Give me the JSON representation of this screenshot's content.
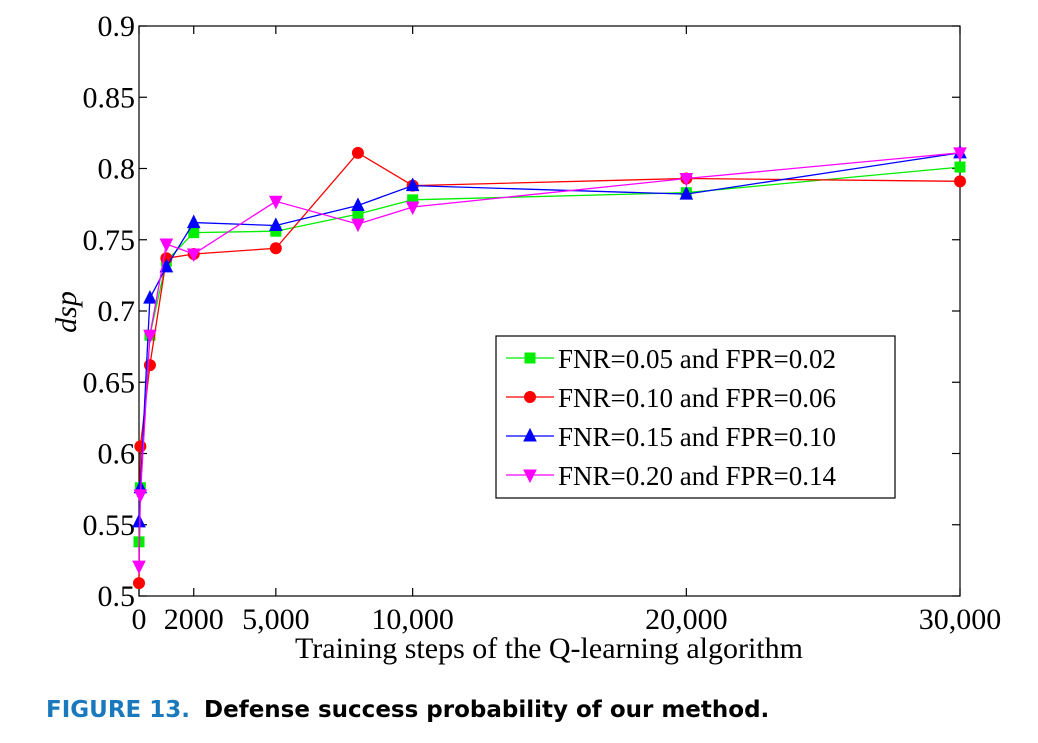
{
  "chart_data": {
    "type": "line",
    "xlabel": "Training steps of the Q-learning algorithm",
    "ylabel": "dsp",
    "xlim": [
      0,
      30000
    ],
    "ylim": [
      0.5,
      0.9
    ],
    "xticks": [
      {
        "value": 0,
        "label": "0"
      },
      {
        "value": 2000,
        "label": "2000"
      },
      {
        "value": 5000,
        "label": "5,000"
      },
      {
        "value": 10000,
        "label": "10,000"
      },
      {
        "value": 20000,
        "label": "20,000"
      },
      {
        "value": 30000,
        "label": "30,000"
      }
    ],
    "yticks": [
      {
        "value": 0.5,
        "label": "0.5"
      },
      {
        "value": 0.55,
        "label": "0.55"
      },
      {
        "value": 0.6,
        "label": "0.6"
      },
      {
        "value": 0.65,
        "label": "0.65"
      },
      {
        "value": 0.7,
        "label": "0.7"
      },
      {
        "value": 0.75,
        "label": "0.75"
      },
      {
        "value": 0.8,
        "label": "0.8"
      },
      {
        "value": 0.85,
        "label": "0.85"
      },
      {
        "value": 0.9,
        "label": "0.9"
      }
    ],
    "grid": false,
    "legend_position": "center-right",
    "series": [
      {
        "name": "FNR=0.05 and FPR=0.02",
        "color": "#00ee00",
        "marker": "square",
        "x": [
          0,
          50,
          400,
          1000,
          2000,
          5000,
          8000,
          10000,
          20000,
          30000
        ],
        "y": [
          0.538,
          0.576,
          0.683,
          0.735,
          0.755,
          0.756,
          0.768,
          0.778,
          0.783,
          0.801
        ]
      },
      {
        "name": "FNR=0.10 and FPR=0.06",
        "color": "#ff0000",
        "marker": "circle",
        "x": [
          0,
          50,
          400,
          1000,
          2000,
          5000,
          8000,
          10000,
          20000,
          30000
        ],
        "y": [
          0.509,
          0.605,
          0.662,
          0.737,
          0.74,
          0.744,
          0.811,
          0.788,
          0.793,
          0.791
        ]
      },
      {
        "name": "FNR=0.15 and FPR=0.10",
        "color": "#0000ff",
        "marker": "triangle-up",
        "x": [
          0,
          50,
          400,
          1000,
          2000,
          5000,
          8000,
          10000,
          20000,
          30000
        ],
        "y": [
          0.552,
          0.576,
          0.709,
          0.731,
          0.762,
          0.76,
          0.774,
          0.788,
          0.782,
          0.811
        ]
      },
      {
        "name": "FNR=0.20 and FPR=0.14",
        "color": "#ff00ff",
        "marker": "triangle-down",
        "x": [
          0,
          50,
          400,
          1000,
          2000,
          5000,
          8000,
          10000,
          20000,
          30000
        ],
        "y": [
          0.521,
          0.571,
          0.683,
          0.747,
          0.74,
          0.777,
          0.761,
          0.773,
          0.793,
          0.811
        ]
      }
    ]
  },
  "caption": {
    "figure_label": "FIGURE 13.",
    "text": "Defense success probability of our method."
  }
}
